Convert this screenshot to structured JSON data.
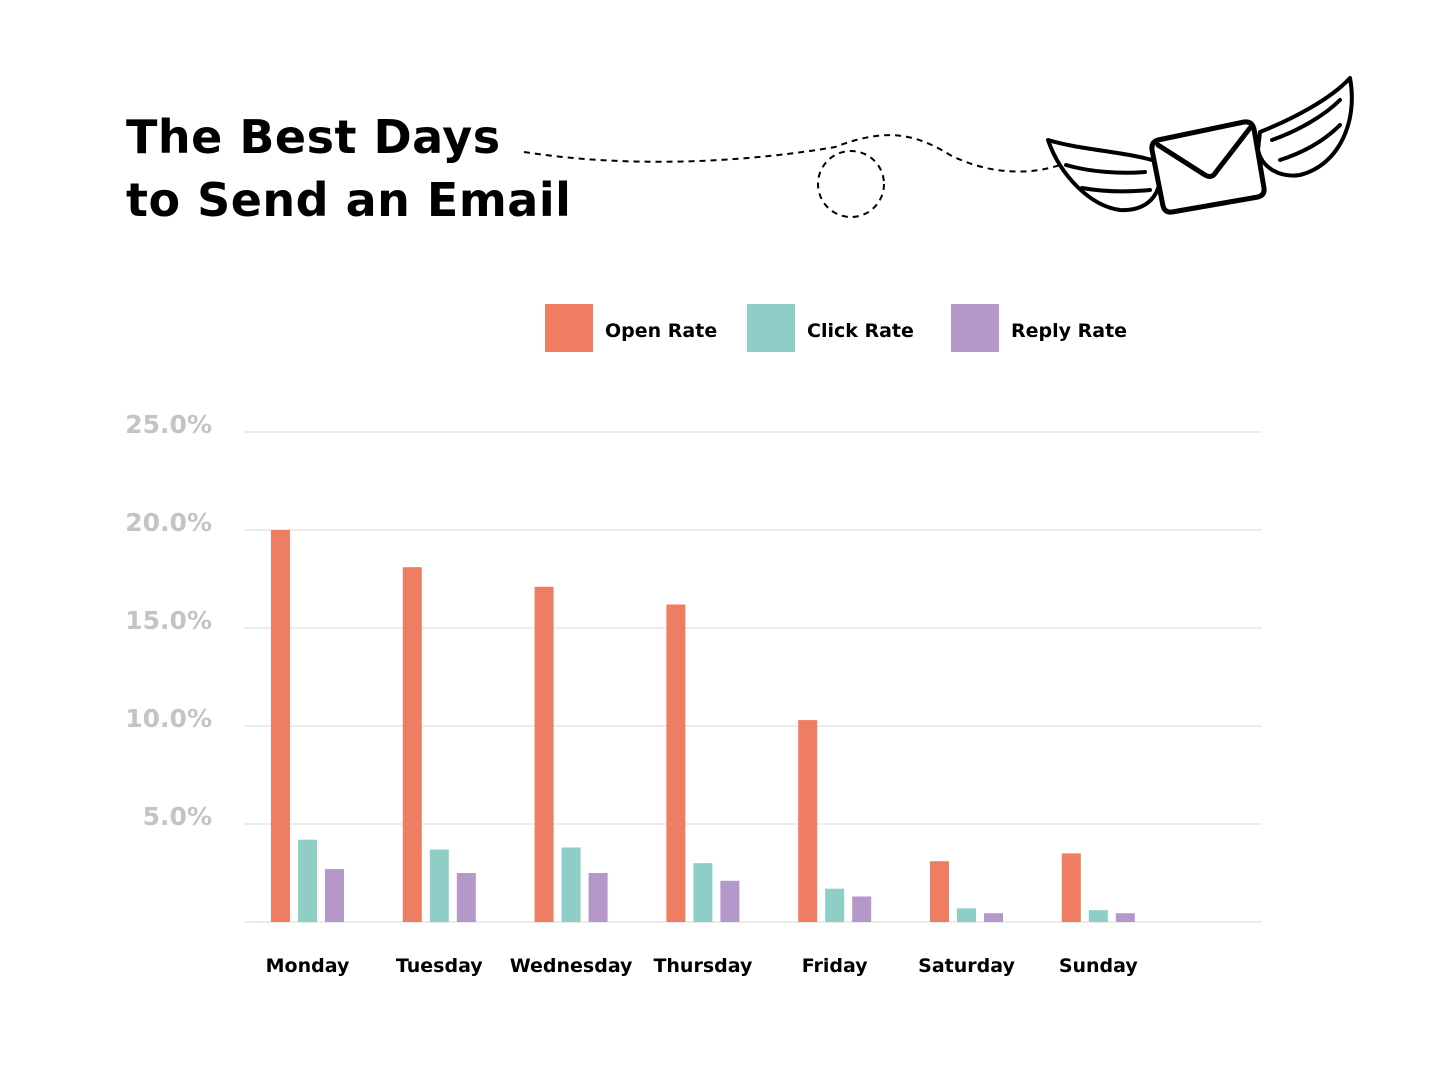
{
  "header": {
    "title_line1": "The Best Days",
    "title_line2": "to Send an Email",
    "illustration_icon": "winged-envelope-icon"
  },
  "chart_data": {
    "type": "bar",
    "categories": [
      "Monday",
      "Tuesday",
      "Wednesday",
      "Thursday",
      "Friday",
      "Saturday",
      "Sunday"
    ],
    "series": [
      {
        "name": "Open Rate",
        "color": "#ef7d61",
        "values": [
          20.0,
          18.1,
          17.1,
          16.2,
          10.3,
          3.1,
          3.5
        ]
      },
      {
        "name": "Click Rate",
        "color": "#8fcdc7",
        "values": [
          4.2,
          3.7,
          3.8,
          3.0,
          1.7,
          0.7,
          0.6
        ]
      },
      {
        "name": "Reply Rate",
        "color": "#b398c9",
        "values": [
          2.7,
          2.5,
          2.5,
          2.1,
          1.3,
          0.45,
          0.45
        ]
      }
    ],
    "ylim": [
      0,
      25
    ],
    "yticks": [
      {
        "value": 5,
        "label": "5.0%"
      },
      {
        "value": 10,
        "label": "10.0%"
      },
      {
        "value": 15,
        "label": "15.0%"
      },
      {
        "value": 20,
        "label": "20.0%"
      },
      {
        "value": 25,
        "label": "25.0%"
      }
    ],
    "grid": true,
    "legend_position": "top-center",
    "xlabel": "",
    "ylabel": ""
  }
}
